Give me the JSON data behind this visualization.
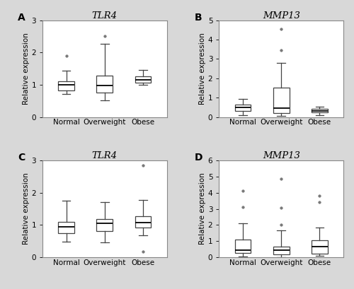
{
  "panels": [
    {
      "label": "A",
      "title": "TLR4",
      "ylabel": "Relative expression",
      "ylim": [
        0,
        3
      ],
      "yticks": [
        0,
        1,
        2,
        3
      ],
      "categories": [
        "Normal",
        "Overweight",
        "Obese"
      ],
      "boxes": [
        {
          "q1": 0.83,
          "median": 1.0,
          "q3": 1.1,
          "whislo": 0.72,
          "whishi": 1.43,
          "fliers": [
            1.9
          ]
        },
        {
          "q1": 0.75,
          "median": 0.97,
          "q3": 1.28,
          "whislo": 0.52,
          "whishi": 2.27,
          "fliers": [
            2.52
          ]
        },
        {
          "q1": 1.07,
          "median": 1.16,
          "q3": 1.27,
          "whislo": 1.0,
          "whishi": 1.45,
          "fliers": []
        }
      ]
    },
    {
      "label": "B",
      "title": "MMP13",
      "ylabel": "Relative expression",
      "ylim": [
        0,
        5
      ],
      "yticks": [
        0,
        1,
        2,
        3,
        4,
        5
      ],
      "categories": [
        "Normal",
        "Overweight",
        "Obese"
      ],
      "boxes": [
        {
          "q1": 0.32,
          "median": 0.5,
          "q3": 0.65,
          "whislo": 0.08,
          "whishi": 0.95,
          "fliers": []
        },
        {
          "q1": 0.2,
          "median": 0.47,
          "q3": 1.52,
          "whislo": 0.05,
          "whishi": 2.8,
          "fliers": [
            3.45,
            4.55
          ]
        },
        {
          "q1": 0.22,
          "median": 0.32,
          "q3": 0.42,
          "whislo": 0.1,
          "whishi": 0.52,
          "fliers": []
        }
      ]
    },
    {
      "label": "C",
      "title": "TLR4",
      "ylabel": "Relative expression",
      "ylim": [
        0,
        3
      ],
      "yticks": [
        0,
        1,
        2,
        3
      ],
      "categories": [
        "Normal",
        "Overweight",
        "Obese"
      ],
      "boxes": [
        {
          "q1": 0.75,
          "median": 0.95,
          "q3": 1.1,
          "whislo": 0.48,
          "whishi": 1.75,
          "fliers": []
        },
        {
          "q1": 0.82,
          "median": 1.05,
          "q3": 1.18,
          "whislo": 0.45,
          "whishi": 1.72,
          "fliers": []
        },
        {
          "q1": 0.92,
          "median": 1.07,
          "q3": 1.28,
          "whislo": 0.68,
          "whishi": 1.78,
          "fliers": [
            2.85,
            0.18
          ]
        }
      ]
    },
    {
      "label": "D",
      "title": "MMP13",
      "ylabel": "Relative expression",
      "ylim": [
        0,
        6
      ],
      "yticks": [
        0,
        1,
        2,
        3,
        4,
        5,
        6
      ],
      "categories": [
        "Normal",
        "Overweight",
        "Obese"
      ],
      "boxes": [
        {
          "q1": 0.28,
          "median": 0.42,
          "q3": 1.1,
          "whislo": 0.05,
          "whishi": 2.1,
          "fliers": [
            4.1,
            3.1
          ]
        },
        {
          "q1": 0.18,
          "median": 0.42,
          "q3": 0.65,
          "whislo": 0.02,
          "whishi": 1.65,
          "fliers": [
            2.0,
            3.05,
            4.85
          ]
        },
        {
          "q1": 0.22,
          "median": 0.65,
          "q3": 1.05,
          "whislo": 0.08,
          "whishi": 1.85,
          "fliers": [
            3.8,
            3.4
          ]
        }
      ]
    }
  ],
  "box_facecolor": "#ffffff",
  "box_edgecolor": "#444444",
  "median_color": "#000000",
  "flier_color": "#777777",
  "flier_marker": "o",
  "flier_size": 2.5,
  "background_color": "#d8d8d8",
  "panel_bg": "#ffffff",
  "spine_color": "#888888",
  "label_fontsize": 10,
  "tick_fontsize": 7.5,
  "ylabel_fontsize": 7.5,
  "title_fontsize": 9.5
}
